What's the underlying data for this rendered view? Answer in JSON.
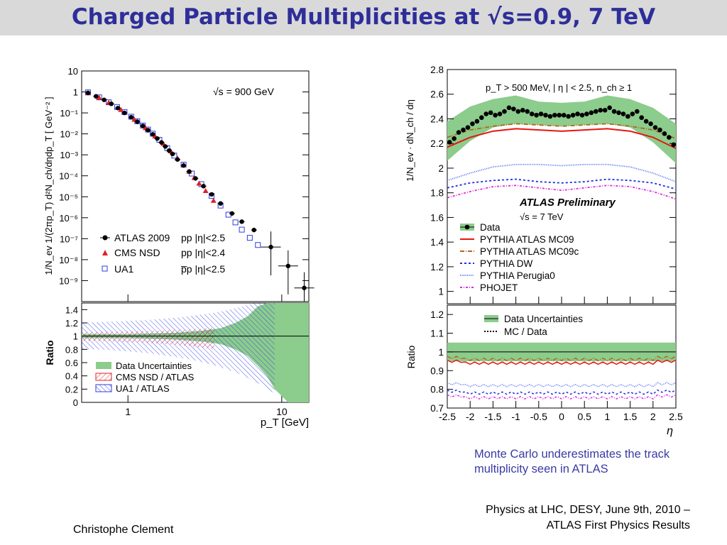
{
  "slide": {
    "title": "Charged Particle Multiplicities at √s=0.9, 7 TeV",
    "note": "Monte Carlo underestimates the track multiplicity seen in ATLAS",
    "footer_right_line1": "Physics at LHC,  DESY, June  9th, 2010  –",
    "footer_right_line2": "ATLAS First Physics Results",
    "footer_left": "Christophe Clement"
  },
  "chart_data": [
    {
      "type": "scatter",
      "id": "pt-spectrum",
      "yscale": "log",
      "xscale": "log",
      "xlim": [
        0.5,
        15
      ],
      "ylim": [
        1e-10,
        10
      ],
      "annotation": "√s = 900 GeV",
      "xlabel": "p_T [GeV]",
      "ylabel": "1/N_ev 1/(2πp_T) d²N_ch/dηdp_T [ GeV⁻² ]",
      "y_ticks": [
        "10",
        "1",
        "10⁻¹",
        "10⁻²",
        "10⁻³",
        "10⁻⁴",
        "10⁻⁵",
        "10⁻⁶",
        "10⁻⁷",
        "10⁻⁸",
        "10⁻⁹"
      ],
      "x_ticks": [
        "1",
        "10"
      ],
      "legend": [
        {
          "name": "ATLAS 2009",
          "cut": "pp |η|<2.5",
          "color": "#000000",
          "marker": "circle"
        },
        {
          "name": "CMS NSD",
          "cut": "pp |η|<2.4",
          "color": "#e0202a",
          "marker": "triangle"
        },
        {
          "name": "UA1",
          "cut": "p̅p |η|<2.5",
          "color": "#2b3de0",
          "marker": "open-square"
        }
      ],
      "series": [
        {
          "name": "ATLAS 2009",
          "x": [
            0.55,
            0.62,
            0.7,
            0.78,
            0.86,
            0.95,
            1.05,
            1.15,
            1.25,
            1.35,
            1.45,
            1.55,
            1.65,
            1.75,
            1.85,
            1.95,
            2.1,
            2.3,
            2.5,
            2.75,
            3.1,
            3.5,
            4.0,
            4.75,
            5.5,
            6.6,
            8.5,
            11.0,
            14.0
          ],
          "y": [
            0.9,
            0.62,
            0.42,
            0.27,
            0.17,
            0.1,
            0.062,
            0.038,
            0.024,
            0.015,
            0.0095,
            0.006,
            0.0039,
            0.0025,
            0.0016,
            0.0011,
            0.0006,
            0.00031,
            0.00016,
            7.5e-05,
            3.2e-05,
            1.3e-05,
            4.8e-06,
            1.6e-06,
            6.5e-07,
            2.6e-07,
            4e-08,
            5e-09,
            4.5e-10
          ]
        },
        {
          "name": "CMS NSD",
          "x": [
            0.55,
            0.65,
            0.75,
            0.9,
            1.1,
            1.3,
            1.5,
            1.7,
            1.9,
            2.1,
            2.3,
            2.5,
            2.7,
            2.9,
            3.2,
            3.6
          ],
          "y": [
            0.88,
            0.52,
            0.31,
            0.14,
            0.048,
            0.019,
            0.0076,
            0.0034,
            0.0015,
            0.00068,
            0.00032,
            0.00016,
            8e-05,
            4.3e-05,
            1.9e-05,
            6.5e-06
          ]
        },
        {
          "name": "UA1",
          "x": [
            0.55,
            0.65,
            0.75,
            0.85,
            0.95,
            1.05,
            1.15,
            1.25,
            1.35,
            1.45,
            1.6,
            1.8,
            2.0,
            2.3,
            2.6,
            3.0,
            3.5,
            4.0,
            4.5,
            5.0,
            5.5,
            6.2,
            7.0
          ],
          "y": [
            0.95,
            0.55,
            0.32,
            0.19,
            0.11,
            0.066,
            0.04,
            0.025,
            0.016,
            0.0102,
            0.0052,
            0.0021,
            0.00092,
            0.00034,
            0.000128,
            4e-05,
            1.1e-05,
            3.8e-06,
            1.4e-06,
            6e-07,
            2.7e-07,
            1.1e-07,
            5e-08
          ]
        }
      ],
      "ratio_panel": {
        "ylabel": "Ratio",
        "ylim": [
          0,
          1.5
        ],
        "y_ticks": [
          "0",
          "0.2",
          "0.4",
          "0.6",
          "0.8",
          "1",
          "1.2",
          "1.4"
        ],
        "legend": [
          "Data Uncertainties",
          "CMS NSD / ATLAS",
          "UA1 / ATLAS"
        ],
        "uncertainty_band": {
          "x": [
            0.5,
            1,
            2,
            3,
            4,
            5,
            6,
            7,
            8,
            9,
            11,
            15
          ],
          "half_width": [
            0.03,
            0.03,
            0.05,
            0.08,
            0.12,
            0.2,
            0.3,
            0.45,
            0.6,
            0.8,
            1.0,
            1.0
          ]
        }
      }
    },
    {
      "type": "scatter",
      "id": "eta-distribution",
      "xlim": [
        -2.5,
        2.5
      ],
      "ylim": [
        0.9,
        2.8
      ],
      "xlabel": "η",
      "ylabel": "1/N_ev · dN_ch / dη",
      "annotation": "p_T > 500 MeV, | η | < 2.5, n_ch ≥ 1",
      "label": "ATLAS Preliminary",
      "sublabel": "√s = 7 TeV",
      "y_ticks": [
        "1",
        "1.2",
        "1.4",
        "1.6",
        "1.8",
        "2",
        "2.2",
        "2.4",
        "2.6",
        "2.8"
      ],
      "x_ticks": [
        "-2.5",
        "-2",
        "-1.5",
        "-1",
        "-0.5",
        "0",
        "0.5",
        "1",
        "1.5",
        "2",
        "2.5"
      ],
      "legend": [
        {
          "name": "Data",
          "color": "#000000",
          "style": "points"
        },
        {
          "name": "PYTHIA ATLAS MC09",
          "color": "#e8150f",
          "style": "solid"
        },
        {
          "name": "PYTHIA ATLAS MC09c",
          "color": "#b5651d",
          "style": "dashdot"
        },
        {
          "name": "PYTHIA DW",
          "color": "#1e2ee0",
          "style": "dashed"
        },
        {
          "name": "PYTHIA Perugia0",
          "color": "#4a6cf0",
          "style": "dotted"
        },
        {
          "name": "PHOJET",
          "color": "#e028d8",
          "style": "dashdot-fine"
        }
      ],
      "series": [
        {
          "name": "Data",
          "x": [
            -2.45,
            -2.35,
            -2.25,
            -2.15,
            -2.05,
            -1.95,
            -1.85,
            -1.75,
            -1.65,
            -1.55,
            -1.45,
            -1.35,
            -1.25,
            -1.15,
            -1.05,
            -0.95,
            -0.85,
            -0.75,
            -0.65,
            -0.55,
            -0.45,
            -0.35,
            -0.25,
            -0.15,
            -0.05,
            0.05,
            0.15,
            0.25,
            0.35,
            0.45,
            0.55,
            0.65,
            0.75,
            0.85,
            0.95,
            1.05,
            1.15,
            1.25,
            1.35,
            1.45,
            1.55,
            1.65,
            1.75,
            1.85,
            1.95,
            2.05,
            2.15,
            2.25,
            2.35,
            2.45
          ],
          "y": [
            2.21,
            2.24,
            2.29,
            2.31,
            2.33,
            2.36,
            2.38,
            2.41,
            2.44,
            2.45,
            2.43,
            2.44,
            2.46,
            2.49,
            2.48,
            2.46,
            2.47,
            2.46,
            2.44,
            2.43,
            2.44,
            2.43,
            2.42,
            2.43,
            2.43,
            2.43,
            2.42,
            2.43,
            2.44,
            2.43,
            2.44,
            2.45,
            2.46,
            2.47,
            2.47,
            2.49,
            2.46,
            2.45,
            2.44,
            2.42,
            2.44,
            2.46,
            2.41,
            2.38,
            2.36,
            2.33,
            2.31,
            2.28,
            2.25,
            2.19
          ]
        },
        {
          "name": "PYTHIA ATLAS MC09",
          "x": [
            -2.5,
            -2.0,
            -1.5,
            -1.0,
            -0.5,
            0.0,
            0.5,
            1.0,
            1.5,
            2.0,
            2.5
          ],
          "y": [
            2.17,
            2.25,
            2.3,
            2.32,
            2.31,
            2.3,
            2.31,
            2.32,
            2.3,
            2.25,
            2.16
          ]
        },
        {
          "name": "PYTHIA ATLAS MC09c",
          "x": [
            -2.5,
            -2.0,
            -1.5,
            -1.0,
            -0.5,
            0.0,
            0.5,
            1.0,
            1.5,
            2.0,
            2.5
          ],
          "y": [
            2.25,
            2.31,
            2.34,
            2.36,
            2.35,
            2.34,
            2.35,
            2.36,
            2.34,
            2.31,
            2.24
          ]
        },
        {
          "name": "PYTHIA DW",
          "x": [
            -2.5,
            -2.0,
            -1.5,
            -1.0,
            -0.5,
            0.0,
            0.5,
            1.0,
            1.5,
            2.0,
            2.5
          ],
          "y": [
            1.84,
            1.88,
            1.9,
            1.91,
            1.89,
            1.88,
            1.89,
            1.91,
            1.9,
            1.88,
            1.83
          ]
        },
        {
          "name": "PYTHIA Perugia0",
          "x": [
            -2.5,
            -2.0,
            -1.5,
            -1.0,
            -0.5,
            0.0,
            0.5,
            1.0,
            1.5,
            2.0,
            2.5
          ],
          "y": [
            1.9,
            1.96,
            2.01,
            2.03,
            2.03,
            2.02,
            2.03,
            2.03,
            2.01,
            1.96,
            1.89
          ]
        },
        {
          "name": "PHOJET",
          "x": [
            -2.5,
            -2.0,
            -1.5,
            -1.0,
            -0.5,
            0.0,
            0.5,
            1.0,
            1.5,
            2.0,
            2.5
          ],
          "y": [
            1.76,
            1.81,
            1.85,
            1.86,
            1.84,
            1.82,
            1.84,
            1.86,
            1.85,
            1.81,
            1.75
          ]
        }
      ],
      "data_band": {
        "x": [
          -2.5,
          -2.0,
          -1.5,
          -1.0,
          -0.5,
          0.0,
          0.5,
          1.0,
          1.5,
          2.0,
          2.5
        ],
        "lower": [
          2.06,
          2.22,
          2.33,
          2.36,
          2.35,
          2.34,
          2.35,
          2.36,
          2.33,
          2.21,
          2.04
        ],
        "upper": [
          2.38,
          2.5,
          2.56,
          2.59,
          2.54,
          2.53,
          2.54,
          2.59,
          2.56,
          2.49,
          2.36
        ]
      },
      "ratio_panel": {
        "ylabel": "Ratio",
        "ylim": [
          0.7,
          1.25
        ],
        "y_ticks": [
          "0.7",
          "0.8",
          "0.9",
          "1",
          "1.1",
          "1.2"
        ],
        "legend": [
          "Data Uncertainties",
          "MC / Data"
        ],
        "band": {
          "lower": 0.95,
          "upper": 1.05
        },
        "series": [
          {
            "name": "PYTHIA ATLAS MC09c",
            "y": 0.96
          },
          {
            "name": "PYTHIA ATLAS MC09",
            "y": 0.94
          },
          {
            "name": "PYTHIA Perugia0",
            "y": 0.82
          },
          {
            "name": "PYTHIA DW",
            "y": 0.78
          },
          {
            "name": "PHOJET",
            "y": 0.755
          }
        ]
      }
    }
  ]
}
